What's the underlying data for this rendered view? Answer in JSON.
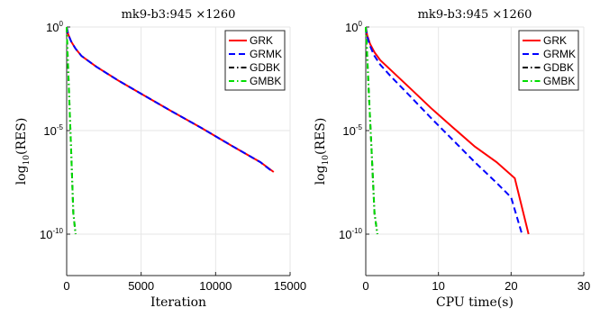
{
  "chart_data": [
    {
      "type": "line",
      "title": "mk9-b3:945 ×1260",
      "xlabel": "Iteration",
      "ylabel": "log10(RES)",
      "y_scale": "log",
      "xlim": [
        0,
        15000
      ],
      "ylim": [
        1e-12,
        1
      ],
      "xticks": [
        0,
        5000,
        10000,
        15000
      ],
      "xtick_labels": [
        "0",
        "5000",
        "10000",
        "15000"
      ],
      "yticks": [
        1,
        1e-05,
        1e-10
      ],
      "ytick_labels": [
        {
          "base": "10",
          "exp": "0"
        },
        {
          "base": "10",
          "exp": "-5"
        },
        {
          "base": "10",
          "exp": "-10"
        }
      ],
      "grid": true,
      "legend_position": "top-right",
      "series": [
        {
          "name": "GRK",
          "color": "#ff0000",
          "dash": "solid",
          "x": [
            0,
            100,
            300,
            600,
            1000,
            2000,
            3500,
            5000,
            7000,
            9000,
            11000,
            13000,
            13900
          ],
          "y": [
            1,
            0.45,
            0.2,
            0.09,
            0.04,
            0.012,
            0.0025,
            0.0006,
            9e-05,
            1.4e-05,
            2e-06,
            3e-07,
            1e-07
          ]
        },
        {
          "name": "GRMK",
          "color": "#0000ff",
          "dash": "dashed",
          "x": [
            0,
            100,
            300,
            600,
            1000,
            2000,
            3500,
            5000,
            7000,
            9000,
            11000,
            13000,
            13850
          ],
          "y": [
            1,
            0.45,
            0.2,
            0.09,
            0.04,
            0.012,
            0.0025,
            0.0006,
            9e-05,
            1.4e-05,
            2e-06,
            3e-07,
            1e-07
          ]
        },
        {
          "name": "GDBK",
          "color": "#000000",
          "dash": "dashdot",
          "x": [
            0,
            50,
            150,
            300,
            450,
            600
          ],
          "y": [
            1,
            0.1,
            0.001,
            1e-06,
            1e-09,
            1e-10
          ]
        },
        {
          "name": "GMBK",
          "color": "#00dd00",
          "dash": "dashdot",
          "x": [
            0,
            50,
            150,
            300,
            450,
            600
          ],
          "y": [
            1,
            0.1,
            0.001,
            1e-06,
            1e-09,
            1e-10
          ]
        }
      ]
    },
    {
      "type": "line",
      "title": "mk9-b3:945 ×1260",
      "xlabel": "CPU time(s)",
      "ylabel": "log10(RES)",
      "y_scale": "log",
      "xlim": [
        0,
        30
      ],
      "ylim": [
        1e-12,
        1
      ],
      "xticks": [
        0,
        10,
        20,
        30
      ],
      "xtick_labels": [
        "0",
        "10",
        "20",
        "30"
      ],
      "yticks": [
        1,
        1e-05,
        1e-10
      ],
      "ytick_labels": [
        {
          "base": "10",
          "exp": "0"
        },
        {
          "base": "10",
          "exp": "-5"
        },
        {
          "base": "10",
          "exp": "-10"
        }
      ],
      "grid": true,
      "legend_position": "top-right",
      "series": [
        {
          "name": "GRK",
          "color": "#ff0000",
          "dash": "solid",
          "x": [
            0,
            0.2,
            0.6,
            1.2,
            2,
            3.5,
            6,
            9,
            12,
            15,
            18,
            20.5,
            22.4
          ],
          "y": [
            1,
            0.4,
            0.15,
            0.06,
            0.025,
            0.008,
            0.0012,
            0.00012,
            1.4e-05,
            1.7e-06,
            3e-07,
            5e-08,
            1e-10
          ]
        },
        {
          "name": "GRMK",
          "color": "#0000ff",
          "dash": "dashed",
          "x": [
            0,
            0.2,
            0.6,
            1.2,
            2,
            3.5,
            6,
            9,
            12,
            15,
            18,
            20,
            21.5
          ],
          "y": [
            1,
            0.35,
            0.12,
            0.04,
            0.015,
            0.004,
            0.0005,
            4e-05,
            3.5e-06,
            3e-07,
            3e-08,
            6e-09,
            1e-10
          ]
        },
        {
          "name": "GDBK",
          "color": "#000000",
          "dash": "dashdot",
          "x": [
            0,
            0.15,
            0.4,
            0.8,
            1.2,
            1.6
          ],
          "y": [
            1,
            0.1,
            0.001,
            1e-06,
            1e-09,
            1e-10
          ]
        },
        {
          "name": "GMBK",
          "color": "#00dd00",
          "dash": "dashdot",
          "x": [
            0,
            0.15,
            0.4,
            0.8,
            1.2,
            1.6
          ],
          "y": [
            1,
            0.1,
            0.001,
            1e-06,
            1e-09,
            1e-10
          ]
        }
      ]
    }
  ]
}
